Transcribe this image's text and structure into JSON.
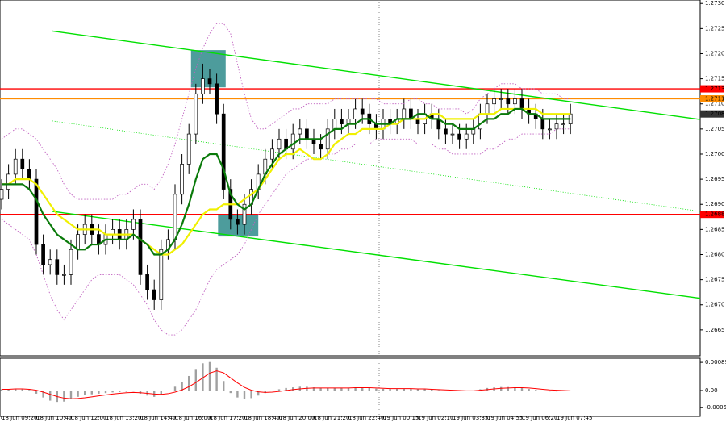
{
  "chart_data": [
    {
      "type": "candlestick",
      "categories": [
        "18 Jun 09:20",
        null,
        null,
        null,
        null,
        "18 Jun 10:40",
        null,
        null,
        null,
        null,
        "18 Jun 12:00",
        null,
        null,
        null,
        null,
        "18 Jun 13:20",
        null,
        null,
        null,
        null,
        "18 Jun 14:40",
        null,
        null,
        null,
        null,
        "18 Jun 16:00",
        null,
        null,
        null,
        null,
        "18 Jun 17:20",
        null,
        null,
        null,
        null,
        "18 Jun 18:40",
        null,
        null,
        null,
        null,
        "18 Jun 20:00",
        null,
        null,
        null,
        null,
        "18 Jun 21:20",
        null,
        null,
        null,
        null,
        "18 Jun 22:40",
        null,
        null,
        null,
        null,
        "19 Jun 00:15",
        null,
        null,
        null,
        null,
        "19 Jun 02:10",
        null,
        null,
        null,
        null,
        "19 Jun 03:35",
        null,
        null,
        null,
        null,
        "19 Jun 04:55",
        null,
        null,
        null,
        null,
        "19 Jun 06:20",
        null,
        null,
        null,
        null,
        "19 Jun 07:45",
        null,
        null
      ],
      "open": [
        1.2691,
        1.2693,
        1.2696,
        1.2699,
        1.2697,
        1.2695,
        1.2682,
        1.2678,
        1.2679,
        1.2676,
        1.2676,
        1.2681,
        1.2684,
        1.2686,
        1.2684,
        1.2682,
        1.2684,
        1.2685,
        1.2683,
        1.2685,
        1.2687,
        1.2676,
        1.2673,
        1.2671,
        1.2681,
        1.2683,
        1.2692,
        1.2698,
        1.2704,
        1.2712,
        1.2715,
        1.2714,
        1.2708,
        1.2693,
        1.2687,
        1.2686,
        1.269,
        1.2693,
        1.2696,
        1.2699,
        1.2701,
        1.2703,
        1.2701,
        1.2704,
        1.2705,
        1.2703,
        1.2702,
        1.2701,
        1.2705,
        1.2707,
        1.2706,
        1.2707,
        1.2709,
        1.2708,
        1.2706,
        1.2705,
        1.2707,
        1.2706,
        1.2707,
        1.2709,
        1.2707,
        1.2706,
        1.2708,
        1.2707,
        1.2705,
        1.2704,
        1.2704,
        1.2703,
        1.2704,
        1.2705,
        1.2708,
        1.271,
        1.2711,
        1.2711,
        1.271,
        1.2711,
        1.2709,
        1.2708,
        1.2707,
        1.2705,
        1.2705,
        1.2706,
        1.2706
      ],
      "high": [
        1.2695,
        1.2698,
        1.2701,
        1.2701,
        1.2699,
        1.2697,
        1.2684,
        1.2681,
        1.2681,
        1.2678,
        1.2683,
        1.2686,
        1.2688,
        1.2688,
        1.2686,
        1.2686,
        1.2687,
        1.2687,
        1.2687,
        1.2689,
        1.2689,
        1.2678,
        1.2675,
        1.2683,
        1.2685,
        1.2694,
        1.27,
        1.2706,
        1.2714,
        1.2718,
        1.2717,
        1.2716,
        1.271,
        1.2695,
        1.2689,
        1.2692,
        1.2695,
        1.2698,
        1.2701,
        1.2703,
        1.2705,
        1.2705,
        1.2706,
        1.2707,
        1.2707,
        1.2705,
        1.2704,
        1.2707,
        1.2709,
        1.2709,
        1.2709,
        1.2711,
        1.2711,
        1.271,
        1.2708,
        1.2709,
        1.2709,
        1.2709,
        1.2711,
        1.2711,
        1.2709,
        1.271,
        1.271,
        1.2709,
        1.2707,
        1.2706,
        1.2706,
        1.2706,
        1.2707,
        1.271,
        1.2712,
        1.2713,
        1.2713,
        1.2713,
        1.2713,
        1.2713,
        1.2711,
        1.271,
        1.2709,
        1.2707,
        1.2708,
        1.2708,
        1.271
      ],
      "low": [
        1.2689,
        1.2691,
        1.2694,
        1.2695,
        1.2693,
        1.268,
        1.2676,
        1.2676,
        1.2674,
        1.2674,
        1.2674,
        1.2679,
        1.2682,
        1.2682,
        1.268,
        1.268,
        1.2682,
        1.2681,
        1.2681,
        1.2683,
        1.2674,
        1.2671,
        1.2669,
        1.2669,
        1.2679,
        1.2681,
        1.269,
        1.2696,
        1.2702,
        1.271,
        1.2712,
        1.2706,
        1.2691,
        1.2685,
        1.2684,
        1.2684,
        1.2688,
        1.2691,
        1.2694,
        1.2697,
        1.2699,
        1.2699,
        1.2699,
        1.2702,
        1.2701,
        1.27,
        1.2699,
        1.2699,
        1.2703,
        1.2704,
        1.2704,
        1.2705,
        1.2706,
        1.2704,
        1.2703,
        1.2703,
        1.2704,
        1.2704,
        1.2705,
        1.2705,
        1.2704,
        1.2704,
        1.2705,
        1.2703,
        1.2702,
        1.2702,
        1.2701,
        1.2701,
        1.2702,
        1.2703,
        1.2706,
        1.2708,
        1.2709,
        1.2708,
        1.2708,
        1.2707,
        1.2706,
        1.2705,
        1.2703,
        1.2703,
        1.2703,
        1.2704,
        1.2704
      ],
      "close": [
        1.2693,
        1.2696,
        1.2699,
        1.2697,
        1.2695,
        1.2682,
        1.2678,
        1.2679,
        1.2676,
        1.2676,
        1.2681,
        1.2684,
        1.2686,
        1.2684,
        1.2682,
        1.2684,
        1.2685,
        1.2683,
        1.2685,
        1.2687,
        1.2676,
        1.2673,
        1.2671,
        1.2681,
        1.2683,
        1.2692,
        1.2698,
        1.2704,
        1.2712,
        1.2715,
        1.2714,
        1.2708,
        1.2693,
        1.2687,
        1.2686,
        1.269,
        1.2693,
        1.2696,
        1.2699,
        1.2701,
        1.2703,
        1.2701,
        1.2704,
        1.2705,
        1.2703,
        1.2702,
        1.2701,
        1.2705,
        1.2707,
        1.2706,
        1.2707,
        1.2709,
        1.2708,
        1.2706,
        1.2705,
        1.2707,
        1.2706,
        1.2707,
        1.2709,
        1.2707,
        1.2706,
        1.2708,
        1.2707,
        1.2705,
        1.2704,
        1.2704,
        1.2703,
        1.2704,
        1.2705,
        1.2708,
        1.271,
        1.2711,
        1.2711,
        1.271,
        1.2711,
        1.2709,
        1.2708,
        1.2707,
        1.2705,
        1.2705,
        1.2706,
        1.2706,
        1.2708
      ],
      "lines": [
        {
          "color": "#c060c0",
          "style": "dotted",
          "values": [
            1.2703,
            1.2704,
            1.2705,
            1.2705,
            1.2704,
            1.2703,
            1.2701,
            1.2699,
            1.2697,
            1.2694,
            1.2692,
            1.2691,
            1.2691,
            1.2691,
            1.2691,
            1.2691,
            1.2691,
            1.2692,
            1.2692,
            1.2693,
            1.2694,
            1.2694,
            1.2693,
            1.2695,
            1.2698,
            1.2702,
            1.2707,
            1.2712,
            1.2717,
            1.2721,
            1.2724,
            1.2726,
            1.2726,
            1.2724,
            1.2718,
            1.2712,
            1.2707,
            1.2705,
            1.2705,
            1.2706,
            1.2707,
            1.2708,
            1.2709,
            1.2709,
            1.271,
            1.271,
            1.271,
            1.271,
            1.2711,
            1.2711,
            1.2711,
            1.2711,
            1.2711,
            1.2711,
            1.2711,
            1.271,
            1.271,
            1.271,
            1.271,
            1.2711,
            1.2711,
            1.271,
            1.271,
            1.2709,
            1.2709,
            1.2709,
            1.2709,
            1.2708,
            1.2709,
            1.2711,
            1.2712,
            1.2713,
            1.2714,
            1.2714,
            1.2714,
            1.2713,
            1.2713,
            1.2713,
            1.2712,
            1.2712,
            1.2712,
            1.2711,
            1.2711
          ]
        },
        {
          "color": "#c060c0",
          "style": "dotted",
          "values": [
            1.2687,
            1.2686,
            1.2685,
            1.2684,
            1.2683,
            1.268,
            1.2676,
            1.2672,
            1.2669,
            1.2667,
            1.2669,
            1.2671,
            1.2673,
            1.2675,
            1.2676,
            1.2676,
            1.2676,
            1.2676,
            1.2675,
            1.2674,
            1.2672,
            1.267,
            1.2667,
            1.2665,
            1.2664,
            1.2664,
            1.2665,
            1.2667,
            1.2669,
            1.2672,
            1.2675,
            1.2677,
            1.2678,
            1.2679,
            1.268,
            1.2682,
            1.2685,
            1.2688,
            1.269,
            1.2692,
            1.2694,
            1.2696,
            1.2697,
            1.2698,
            1.2699,
            1.2699,
            1.2699,
            1.27,
            1.27,
            1.2701,
            1.2701,
            1.2702,
            1.2702,
            1.2702,
            1.2703,
            1.2703,
            1.2703,
            1.2703,
            1.2703,
            1.2703,
            1.2702,
            1.2702,
            1.2702,
            1.2701,
            1.2701,
            1.27,
            1.27,
            1.27,
            1.27,
            1.27,
            1.2701,
            1.2701,
            1.2702,
            1.2703,
            1.2703,
            1.2704,
            1.2704,
            1.2704,
            1.2704,
            1.2704,
            1.2705,
            1.2705,
            1.2705
          ]
        },
        {
          "color": "#f0f000",
          "style": "solid",
          "values": [
            1.2694,
            1.2694,
            1.2695,
            1.2695,
            1.2695,
            1.2694,
            1.2692,
            1.269,
            1.2688,
            1.2687,
            1.2686,
            1.2685,
            1.2685,
            1.2685,
            1.2685,
            1.2684,
            1.2684,
            1.2684,
            1.2684,
            1.2684,
            1.2683,
            1.2682,
            1.2681,
            1.268,
            1.268,
            1.2681,
            1.2682,
            1.2684,
            1.2686,
            1.2688,
            1.2689,
            1.2689,
            1.269,
            1.269,
            1.269,
            1.2691,
            1.2692,
            1.2693,
            1.2695,
            1.2697,
            1.2699,
            1.27,
            1.27,
            1.2701,
            1.27,
            1.2699,
            1.2699,
            1.27,
            1.2702,
            1.2703,
            1.2704,
            1.2704,
            1.2705,
            1.2705,
            1.2705,
            1.2705,
            1.2706,
            1.2706,
            1.2707,
            1.2707,
            1.2707,
            1.2707,
            1.2708,
            1.2708,
            1.2707,
            1.2707,
            1.2707,
            1.2707,
            1.2707,
            1.2708,
            1.2708,
            1.2708,
            1.2709,
            1.2709,
            1.2709,
            1.2709,
            1.2709,
            1.2709,
            1.2708,
            1.2708,
            1.2708,
            1.2708,
            1.2708
          ]
        },
        {
          "color": "#0a7a0a",
          "style": "solid",
          "values": [
            1.2694,
            1.2694,
            1.2694,
            1.2694,
            1.2693,
            1.2691,
            1.2688,
            1.2686,
            1.2684,
            1.2683,
            1.2682,
            1.2681,
            1.2681,
            1.2682,
            1.2682,
            1.2683,
            1.2683,
            1.2683,
            1.2683,
            1.2684,
            1.2683,
            1.2682,
            1.268,
            1.268,
            1.2681,
            1.2683,
            1.2686,
            1.269,
            1.2695,
            1.2699,
            1.27,
            1.27,
            1.2697,
            1.2692,
            1.269,
            1.2689,
            1.269,
            1.2693,
            1.2696,
            1.2698,
            1.27,
            1.2701,
            1.2702,
            1.2703,
            1.2703,
            1.2703,
            1.2703,
            1.2704,
            1.2705,
            1.2705,
            1.2706,
            1.2706,
            1.2707,
            1.2707,
            1.2706,
            1.2706,
            1.2706,
            1.2707,
            1.2707,
            1.2707,
            1.2708,
            1.2708,
            1.2707,
            1.2707,
            1.2706,
            1.2706,
            1.2705,
            1.2705,
            1.2705,
            1.2706,
            1.2707,
            1.2707,
            1.2708,
            1.2708,
            1.2709,
            1.2709,
            1.2708,
            1.2708,
            1.2707,
            1.2707,
            1.2707,
            1.2707,
            1.2707
          ]
        }
      ],
      "trendlines": [
        {
          "color": "#00e000",
          "style": "solid",
          "x": [
            7.3,
            100.7
          ],
          "y": [
            1.27245,
            1.27069
          ]
        },
        {
          "color": "#00e000",
          "style": "dotted",
          "x": [
            7.3,
            100.7
          ],
          "y": [
            1.27066,
            1.26886
          ]
        },
        {
          "color": "#00e000",
          "style": "solid",
          "x": [
            7.3,
            100.7
          ],
          "y": [
            1.26886,
            1.26713
          ]
        }
      ],
      "zones": [
        {
          "color": "#2e8b8b",
          "x": [
            27.3,
            32.3
          ],
          "y": [
            1.27133,
            1.27207
          ]
        },
        {
          "color": "#2e8b8b",
          "x": [
            31.2,
            37.0
          ],
          "y": [
            1.26836,
            1.26881
          ]
        }
      ],
      "levels": [
        {
          "value": 1.2713,
          "color": "#ff0000"
        },
        {
          "value": 1.2711,
          "color": "#ff8c00"
        },
        {
          "value": 1.2688,
          "color": "#ff0000"
        }
      ],
      "ylim": [
        1.266,
        1.2731
      ],
      "yticks": [
        {
          "value": 1.273,
          "label": "1.2730"
        },
        1.2725,
        {
          "value": 1.272,
          "label": "1.2720"
        },
        1.2715,
        {
          "value": 1.271,
          "label": "1.2710"
        },
        1.2705,
        {
          "value": 1.27,
          "label": "1.2700"
        },
        1.2695,
        {
          "value": 1.269,
          "label": "1.2690"
        },
        1.2685,
        {
          "value": 1.268,
          "label": "1.2680"
        },
        1.2675,
        {
          "value": 1.267,
          "label": "1.2670"
        },
        1.2665
      ]
    },
    {
      "type": "macd",
      "histogram": {
        "color": "#a0a0a0",
        "values": [
          4e-05,
          5e-05,
          6e-05,
          5e-05,
          2e-05,
          -0.0001,
          -0.00022,
          -0.00032,
          -0.00036,
          -0.00035,
          -0.00028,
          -0.0002,
          -0.00014,
          -0.00012,
          -0.0001,
          -8e-05,
          -6e-05,
          -5e-05,
          -4e-05,
          -3e-05,
          -0.0001,
          -0.00016,
          -0.0002,
          -0.00014,
          -2e-05,
          0.00012,
          0.00028,
          0.00046,
          0.00068,
          0.00086,
          0.0009,
          0.00072,
          0.0003,
          -8e-05,
          -0.00022,
          -0.00028,
          -0.00024,
          -0.00016,
          -8e-05,
          -2e-05,
          4e-05,
          8e-05,
          0.0001,
          0.00012,
          0.00012,
          0.0001,
          8e-05,
          8e-05,
          9e-05,
          9e-05,
          9e-05,
          0.0001,
          0.0001,
          8e-05,
          6e-05,
          5e-05,
          5e-05,
          6e-05,
          6e-05,
          5e-05,
          4e-05,
          4e-05,
          3e-05,
          1e-05,
          -1e-05,
          -2e-05,
          -2e-05,
          -2e-05,
          0,
          4e-05,
          8e-05,
          0.0001,
          0.00011,
          0.00011,
          0.0001,
          8e-05,
          5e-05,
          2e-05,
          -1e-05,
          -3e-05,
          -3e-05,
          -2e-05,
          -1e-05
        ]
      },
      "signal": {
        "color": "#ff0000",
        "values": [
          4e-05,
          4e-05,
          5e-05,
          5e-05,
          4e-05,
          1e-05,
          -5e-05,
          -0.00012,
          -0.00019,
          -0.00024,
          -0.00026,
          -0.00025,
          -0.00023,
          -0.0002,
          -0.00017,
          -0.00014,
          -0.00011,
          -9e-05,
          -7e-05,
          -6e-05,
          -7e-05,
          -9e-05,
          -0.00011,
          -0.00012,
          -0.0001,
          -5e-05,
          2e-05,
          0.00012,
          0.00025,
          0.0004,
          0.00055,
          0.00062,
          0.00056,
          0.0004,
          0.00024,
          0.0001,
          1e-05,
          -4e-05,
          -6e-05,
          -5e-05,
          -3e-05,
          0,
          3e-05,
          5e-05,
          7e-05,
          8e-05,
          8e-05,
          8e-05,
          8e-05,
          8e-05,
          8e-05,
          9e-05,
          9e-05,
          9e-05,
          8e-05,
          7e-05,
          6e-05,
          6e-05,
          6e-05,
          6e-05,
          5e-05,
          5e-05,
          4e-05,
          3e-05,
          2e-05,
          1e-05,
          0,
          -1e-05,
          -1e-05,
          1e-05,
          3e-05,
          5e-05,
          7e-05,
          8e-05,
          9e-05,
          9e-05,
          8e-05,
          6e-05,
          4e-05,
          2e-05,
          1e-05,
          0,
          -1e-05
        ]
      },
      "ylim": [
        -0.00079,
        0.00102
      ],
      "yticks": [
        0.00089,
        {
          "value": 0,
          "label": "0.00"
        },
        -0.00054
      ]
    }
  ]
}
